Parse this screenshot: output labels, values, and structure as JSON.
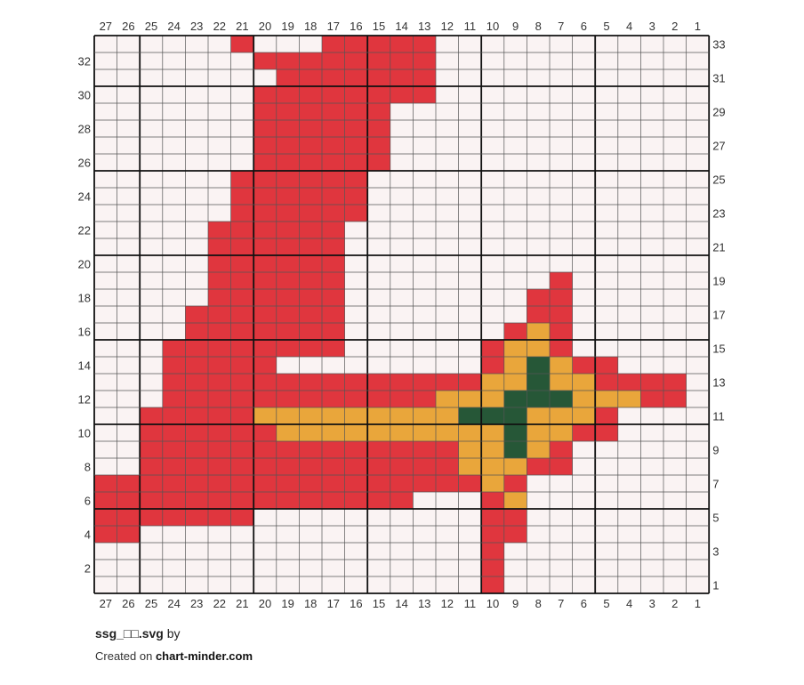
{
  "chart": {
    "columns": 27,
    "rows": 33,
    "major_every": 5,
    "colors": {
      "background": "#faf3f3",
      "R": "#e0363e",
      "Y": "#e9a63b",
      "G": "#265737",
      "grid_minor": "#555555",
      "grid_major": "#111111"
    },
    "pattern": [
      "|     R ..RRRRR.           ",
      "|      RRRRRRRR            ",
      "|       RRRRRRR            ",
      "|      RRRRRRRR            ",
      "|      RRRRRR.             ",
      "|      RRRRRR              ",
      "|      RRRRRR              ",
      "|      RRRRRR              ",
      "|     RRRRRR               ",
      "|     RRRRRR               ",
      "|     RRRRRR               ",
      "|    RRRRRR                ",
      "|    RRRRRR                ",
      "|    RRRRRR                ",
      "|    RRRRRR         R      ",
      "|    RRRRRR        RR      ",
      "|   RRRRRRR        RR      ",
      "|   RRRRRRR       RYR      ",
      "|  RRRRRRRR      RYYR      ",
      "|  RRRRR ..      RYGYRR    ",
      "|  RRRRRRRRRRRRRRYYGYYRRRR ",
      "|  RRRRRRRRRRRRYYYGGGYYYRR ",
      "| RRRRRYYYYYYYYYGGGYYYR    ",
      "| RRRRRRYYYYYYYYYYGYYRR    ",
      "| RRRRRRRRRRRRRRYYGYR      ",
      "| RRRRRRRRRRRRRRYYYRR      ",
      "RRRRRRRRRRRRRRRRRYR        ",
      "RRRRRRRRRRRRRR   RY        ",
      "RRRRRRR          RR        ",
      "RR               RR        ",
      "                 R         ",
      "                 R         ",
      "                 R         "
    ]
  },
  "footer": {
    "filename": "ssg_□□.svg",
    "by": "by",
    "created_on": "Created on",
    "site": "chart-minder.com"
  }
}
